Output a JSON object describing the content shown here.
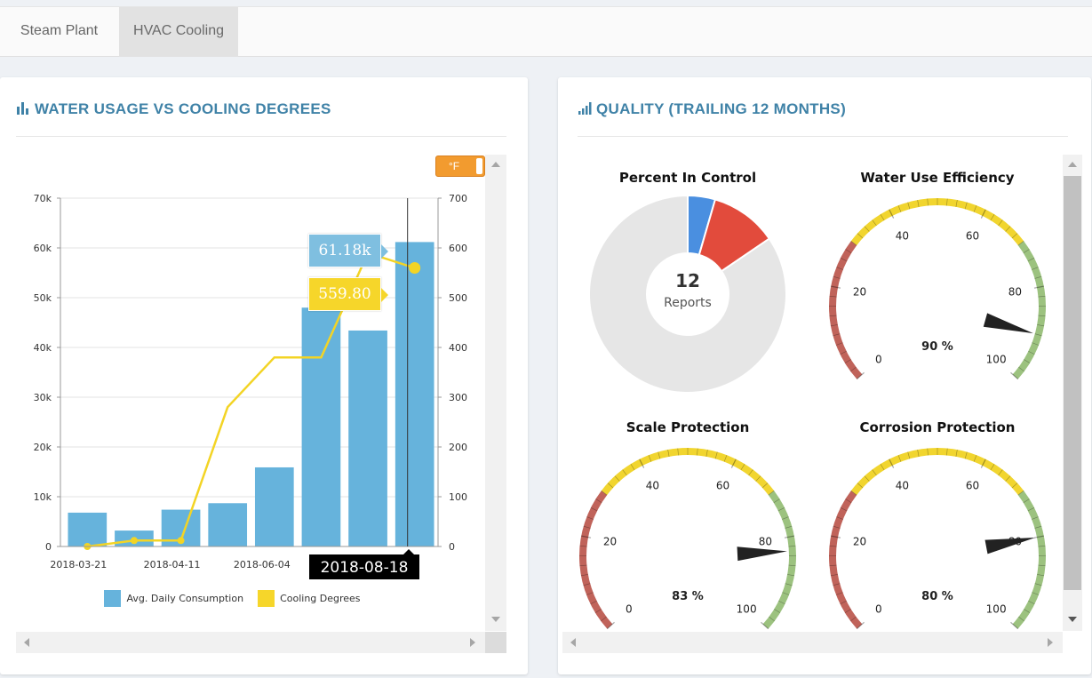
{
  "tabs": [
    {
      "label": "Steam Plant"
    },
    {
      "label": "HVAC Cooling"
    }
  ],
  "water_panel": {
    "title": "WATER USAGE VS COOLING DEGREES",
    "unit_toggle": "°F",
    "tooltip_consumption": "61.18k",
    "tooltip_degrees": "559.80",
    "crosshair_date": "2018-08-18",
    "y_left_ticks": [
      "0",
      "10k",
      "20k",
      "30k",
      "40k",
      "50k",
      "60k",
      "70k"
    ],
    "y_right_ticks": [
      "0",
      "100",
      "200",
      "300",
      "400",
      "500",
      "600",
      "700"
    ],
    "x_ticks": [
      "2018-03-21",
      "2018-04-11",
      "2018-06-04"
    ],
    "legend": [
      "Avg. Daily Consumption",
      "Cooling Degrees"
    ]
  },
  "chart_data": {
    "type": "bar",
    "title": "WATER USAGE VS COOLING DEGREES",
    "y_left_range": [
      0,
      70000
    ],
    "y_right_range": [
      0,
      700
    ],
    "series": [
      {
        "name": "Avg. Daily Consumption",
        "kind": "bar",
        "axis": "left",
        "color": "#66b3dc",
        "values": [
          6800,
          3200,
          7400,
          8700,
          15900,
          48000,
          43400,
          61180
        ]
      },
      {
        "name": "Cooling Degrees",
        "kind": "line",
        "axis": "right",
        "color": "#f3d425",
        "values": [
          0,
          12,
          12,
          280,
          380,
          380,
          590,
          559.8
        ]
      }
    ],
    "grid": true,
    "legend_position": "bottom"
  },
  "quality_panel": {
    "title": "QUALITY (TRAILING 12 MONTHS)",
    "donut": {
      "title": "Percent In Control",
      "center_value": "12",
      "center_label": "Reports",
      "slices": [
        {
          "value": 0.045,
          "color": "#4a8fe0"
        },
        {
          "value": 0.11,
          "color": "#e24b3c"
        },
        {
          "value": 0.845,
          "color": "#e6e6e6"
        }
      ]
    },
    "gauges": [
      {
        "title": "Water Use Efficiency",
        "value": 90,
        "label": "90 %",
        "ticks": [
          "0",
          "20",
          "40",
          "60",
          "80",
          "100"
        ]
      },
      {
        "title": "Scale Protection",
        "value": 83,
        "label": "83 %",
        "ticks": [
          "0",
          "20",
          "40",
          "60",
          "80",
          "100"
        ]
      },
      {
        "title": "Corrosion Protection",
        "value": 80,
        "label": "80 %",
        "ticks": [
          "0",
          "20",
          "40",
          "60",
          "80",
          "100"
        ]
      }
    ],
    "gauge_colors": {
      "red": "#c0635a",
      "yellow": "#f1d52f",
      "green": "#9cc27f",
      "needle": "#222222"
    }
  }
}
